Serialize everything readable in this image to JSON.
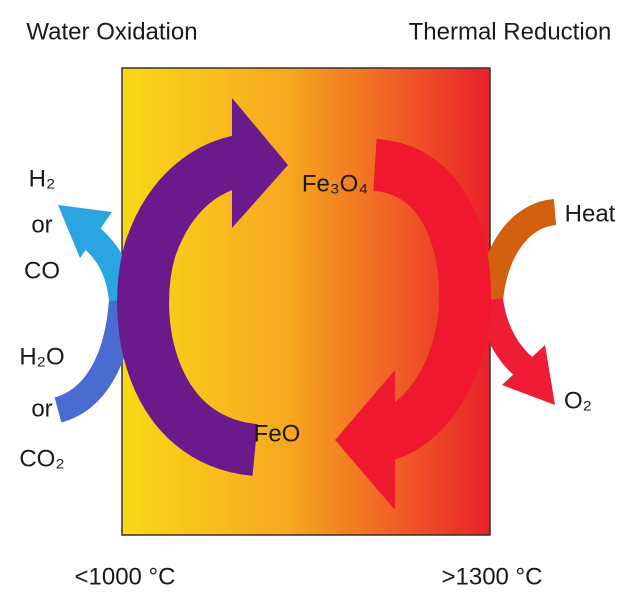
{
  "titles": {
    "left": "Water Oxidation",
    "right": "Thermal Reduction"
  },
  "left_side": {
    "products": [
      "H₂",
      "or",
      "CO"
    ],
    "reactants": [
      "H₂O",
      "or",
      "CO₂"
    ]
  },
  "cycle": {
    "top": "Fe₃O₄",
    "bottom": "FeO"
  },
  "right_side": {
    "input": "Heat",
    "output": "O₂"
  },
  "temperatures": {
    "left": "<1000 °C",
    "right": ">1300 °C"
  }
}
